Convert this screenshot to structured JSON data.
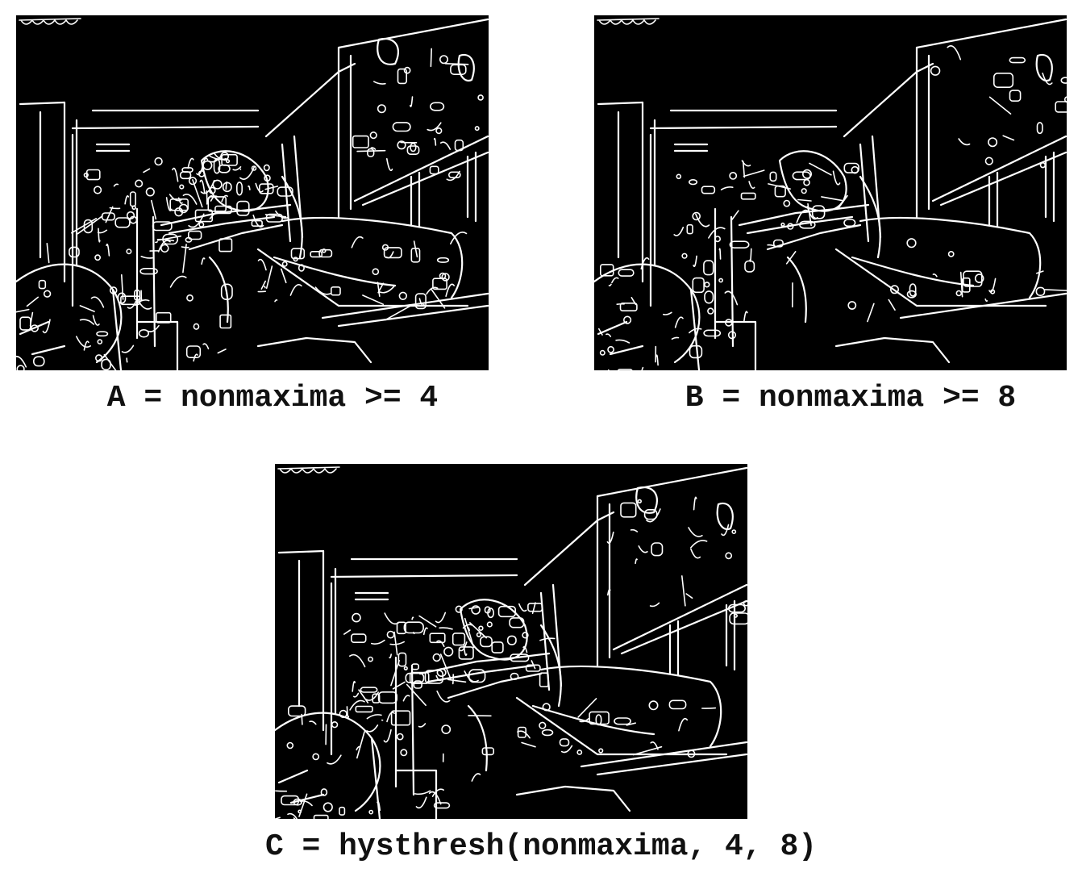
{
  "panels": [
    {
      "id": "a",
      "caption": "A = nonmaxima >= 4",
      "image": "edge-map-threshold-low",
      "density": 1.0
    },
    {
      "id": "b",
      "caption": "B = nonmaxima >= 8",
      "image": "edge-map-threshold-high",
      "density": 0.55
    },
    {
      "id": "c",
      "caption": "C = hysthresh(nonmaxima, 4, 8)",
      "image": "edge-map-hysteresis",
      "density": 0.8
    }
  ],
  "colors": {
    "background": "#ffffff",
    "panel_background": "#000000",
    "edge": "#ffffff",
    "caption_text": "#111111"
  }
}
